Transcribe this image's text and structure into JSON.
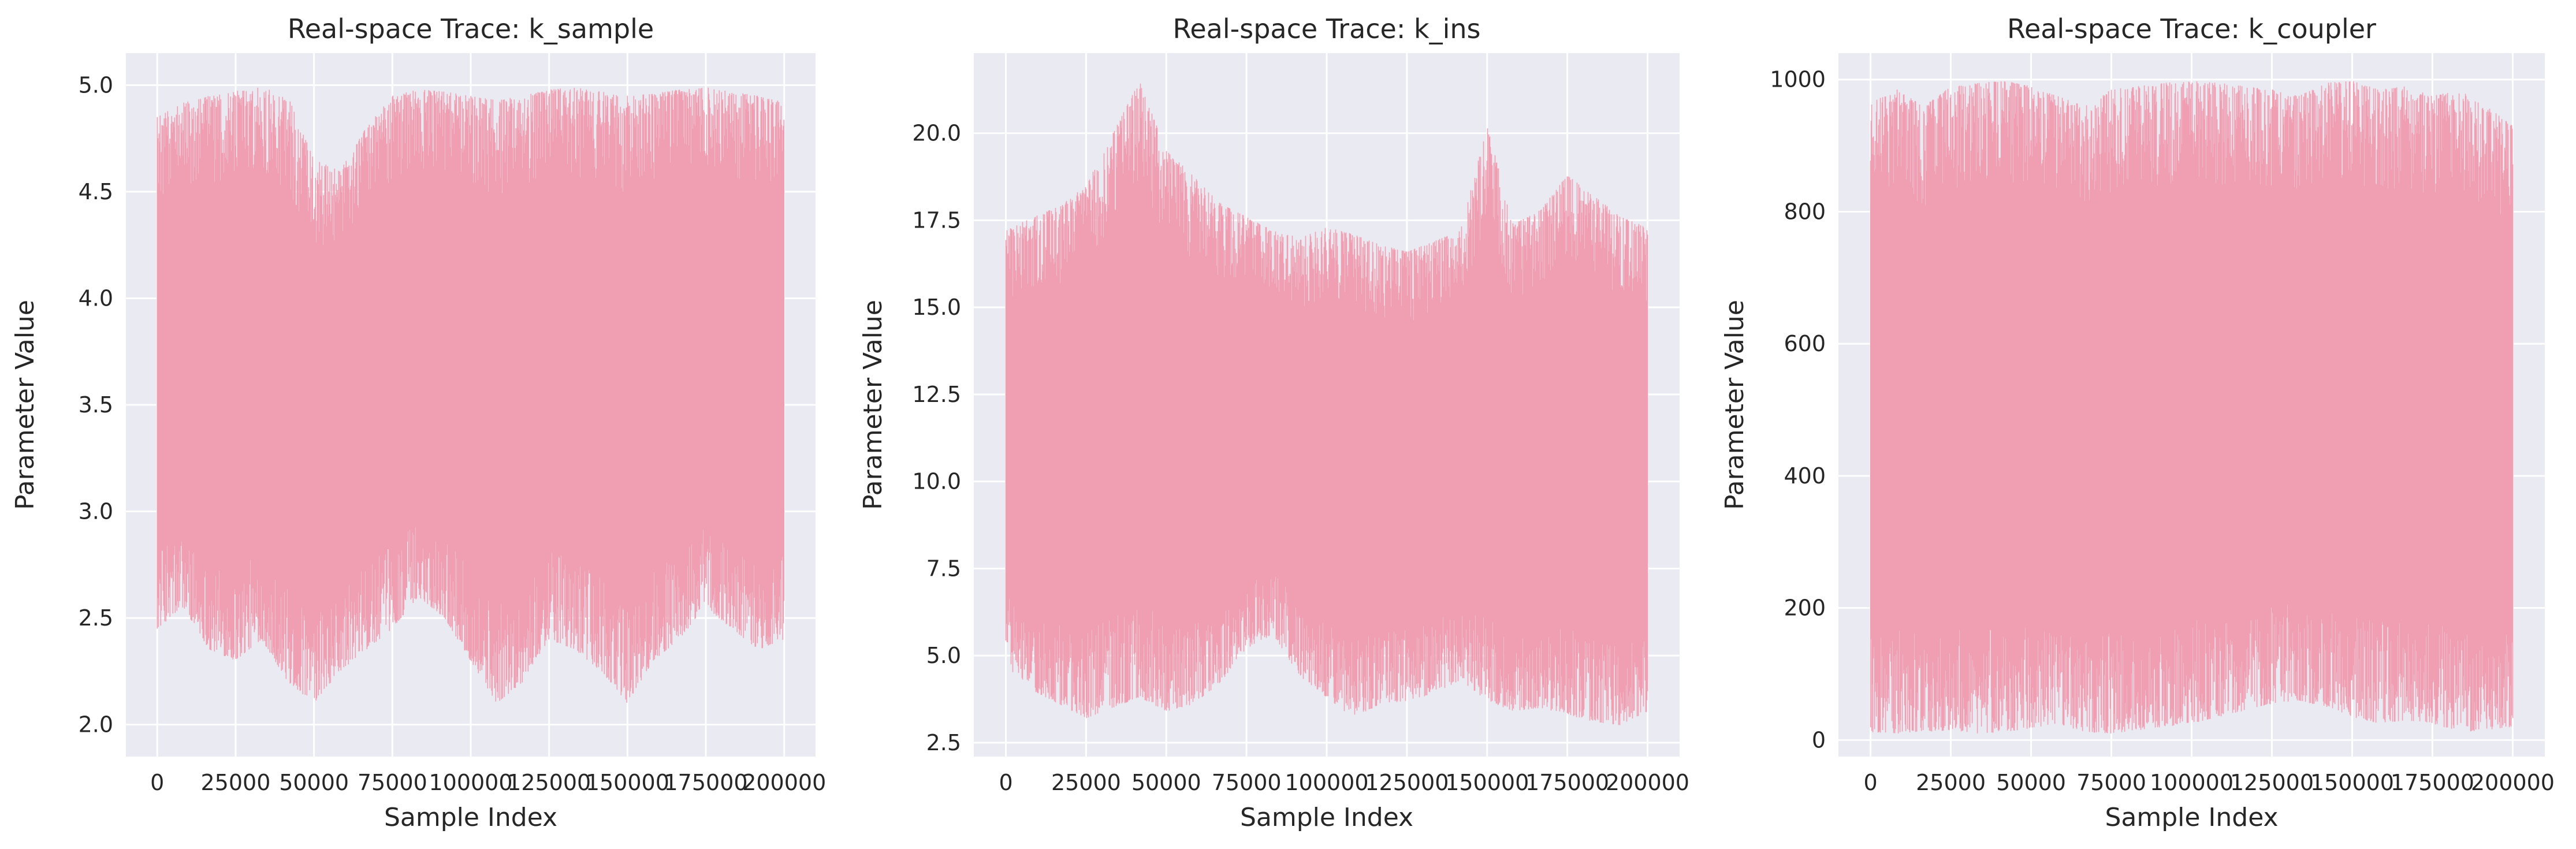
{
  "chart_data": [
    {
      "type": "area",
      "title": "Real-space Trace: k_sample",
      "xlabel": "Sample Index",
      "ylabel": "Parameter Value",
      "xlim": [
        -10000,
        210000
      ],
      "ylim": [
        1.85,
        5.15
      ],
      "xticks": [
        0,
        25000,
        50000,
        75000,
        100000,
        125000,
        150000,
        175000,
        200000
      ],
      "yticks": [
        2.0,
        2.5,
        3.0,
        3.5,
        4.0,
        4.5,
        5.0
      ],
      "ytick_decimals": 1,
      "x_range": [
        0,
        200000
      ],
      "trace_range": [
        2.0,
        5.0
      ],
      "upper_envelope": [
        4.85,
        4.92,
        4.95,
        4.98,
        4.99,
        4.95,
        4.65,
        4.6,
        4.8,
        4.95,
        4.98,
        4.97,
        4.95,
        4.93,
        4.95,
        4.98,
        4.99,
        4.97,
        4.95,
        4.96,
        4.98,
        4.99,
        4.97,
        4.95,
        4.92
      ],
      "lower_envelope": [
        2.45,
        2.55,
        2.35,
        2.3,
        2.4,
        2.2,
        2.1,
        2.25,
        2.35,
        2.45,
        2.6,
        2.5,
        2.3,
        2.1,
        2.2,
        2.4,
        2.35,
        2.25,
        2.1,
        2.3,
        2.4,
        2.55,
        2.45,
        2.35,
        2.4
      ]
    },
    {
      "type": "area",
      "title": "Real-space Trace: k_ins",
      "xlabel": "Sample Index",
      "ylabel": "Parameter Value",
      "xlim": [
        -10000,
        210000
      ],
      "ylim": [
        2.1,
        22.3
      ],
      "xticks": [
        0,
        25000,
        50000,
        75000,
        100000,
        125000,
        150000,
        175000,
        200000
      ],
      "yticks": [
        2.5,
        5.0,
        7.5,
        10.0,
        12.5,
        15.0,
        17.5,
        20.0
      ],
      "ytick_decimals": 1,
      "x_range": [
        0,
        200000
      ],
      "trace_range": [
        3.0,
        21.5
      ],
      "upper_envelope": [
        17.2,
        17.6,
        17.9,
        18.5,
        20.0,
        21.5,
        19.5,
        18.8,
        18.0,
        17.6,
        17.2,
        17.0,
        17.3,
        17.1,
        16.8,
        16.6,
        16.9,
        17.2,
        20.2,
        17.4,
        17.8,
        18.8,
        18.2,
        17.6,
        17.3
      ],
      "lower_envelope": [
        4.7,
        4.0,
        3.6,
        3.2,
        3.5,
        3.8,
        3.4,
        3.6,
        4.2,
        5.2,
        5.6,
        4.4,
        3.8,
        3.2,
        3.6,
        3.7,
        3.9,
        4.3,
        3.7,
        3.4,
        3.5,
        3.3,
        3.1,
        3.0,
        3.4
      ]
    },
    {
      "type": "area",
      "title": "Real-space Trace: k_coupler",
      "xlabel": "Sample Index",
      "ylabel": "Parameter Value",
      "xlim": [
        -10000,
        210000
      ],
      "ylim": [
        -25,
        1040
      ],
      "xticks": [
        0,
        25000,
        50000,
        75000,
        100000,
        125000,
        150000,
        175000,
        200000
      ],
      "yticks": [
        0,
        200,
        400,
        600,
        800,
        1000
      ],
      "ytick_decimals": 0,
      "x_range": [
        0,
        200000
      ],
      "trace_range": [
        5,
        998
      ],
      "upper_envelope": [
        965,
        985,
        960,
        990,
        995,
        998,
        990,
        975,
        960,
        985,
        990,
        995,
        998,
        995,
        990,
        985,
        975,
        995,
        998,
        985,
        990,
        975,
        985,
        960,
        930
      ],
      "lower_envelope": [
        12,
        10,
        12,
        15,
        10,
        12,
        18,
        25,
        12,
        10,
        15,
        20,
        25,
        35,
        45,
        55,
        60,
        50,
        35,
        25,
        30,
        25,
        12,
        15,
        20
      ]
    }
  ],
  "style": {
    "fill_color": "#ef9fb1",
    "plot_bg": "#eaeaf2",
    "grid_color": "#ffffff",
    "text_color": "#262626"
  }
}
